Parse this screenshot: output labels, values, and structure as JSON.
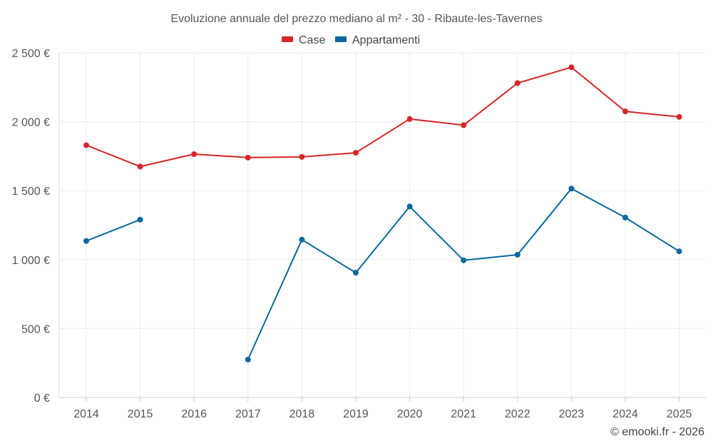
{
  "chart_data": {
    "type": "line",
    "title": "Evoluzione annuale del prezzo mediano al m² - 30 - Ribaute-les-Tavernes",
    "categories": [
      "2014",
      "2015",
      "2016",
      "2017",
      "2018",
      "2019",
      "2020",
      "2021",
      "2022",
      "2023",
      "2024",
      "2025"
    ],
    "y_ticks": [
      0,
      500,
      1000,
      1500,
      2000,
      2500
    ],
    "y_tick_labels": [
      "0 €",
      "500 €",
      "1 000 €",
      "1 500 €",
      "2 000 €",
      "2 500 €"
    ],
    "ylim": [
      0,
      2500
    ],
    "legend_position": "top-center",
    "grid": true,
    "series": [
      {
        "name": "Case",
        "color": "#d62728",
        "values": [
          1830,
          1675,
          1765,
          1740,
          1745,
          1775,
          2020,
          1975,
          2280,
          2395,
          2075,
          2035
        ]
      },
      {
        "name": "Appartamenti",
        "color": "#07689f",
        "values": [
          1135,
          1290,
          null,
          275,
          1145,
          905,
          1385,
          995,
          1035,
          1515,
          1305,
          1060
        ]
      }
    ],
    "credit": "© emooki.fr - 2026"
  }
}
